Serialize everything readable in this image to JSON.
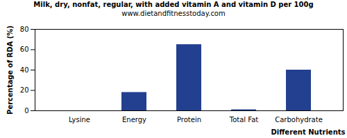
{
  "chart_data": {
    "type": "bar",
    "title": "Milk, dry, nonfat, regular, with added vitamin A and vitamin D per 100g",
    "subtitle": "www.dietandfitnesstoday.com",
    "x_label": "Different Nutrients",
    "y_label": "Percentage of RDA (%)",
    "categories": [
      "Lysine",
      "Energy",
      "Protein",
      "Total Fat",
      "Carbohydrate"
    ],
    "values": [
      0,
      18,
      65,
      1,
      40
    ],
    "color": "#233f8f",
    "ylim": [
      0,
      80
    ],
    "yticks": [
      0,
      20,
      40,
      60,
      80
    ],
    "grid": false
  }
}
